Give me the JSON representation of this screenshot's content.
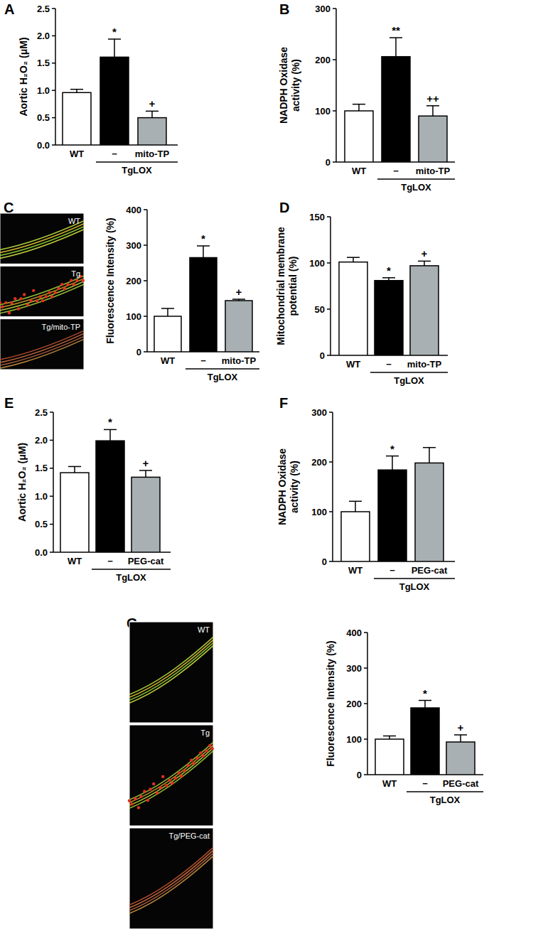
{
  "chart_data": [
    {
      "type": "bar",
      "title": "A",
      "ylabel": [
        "Aortic H₂O₂ (μM)"
      ],
      "categories": [
        "WT",
        "−",
        "mito-TP"
      ],
      "group_label": "TgLOX",
      "values": [
        0.96,
        1.61,
        0.5
      ],
      "errors": [
        0.06,
        0.33,
        0.12
      ],
      "colors": [
        "#ffffff",
        "#000000",
        "#a8b0b3"
      ],
      "annotations": [
        null,
        "*",
        "+"
      ],
      "ylim": [
        0,
        2.5
      ],
      "yticks": [
        {
          "value": 0,
          "label": "0.0"
        },
        0.5,
        {
          "value": 1,
          "label": "1.0"
        },
        1.5,
        {
          "value": 2,
          "label": "2.0"
        },
        2.5
      ]
    },
    {
      "type": "bar",
      "title": "B",
      "ylabel": [
        "NADPH Oxidase",
        "activity (%)"
      ],
      "categories": [
        "WT",
        "−",
        "mito-TP"
      ],
      "group_label": "TgLOX",
      "values": [
        100,
        206,
        90
      ],
      "errors": [
        13,
        37,
        20
      ],
      "colors": [
        "#ffffff",
        "#000000",
        "#a8b0b3"
      ],
      "annotations": [
        null,
        "**",
        "++"
      ],
      "ylim": [
        0,
        300
      ],
      "yticks": [
        0,
        100,
        200,
        300
      ]
    },
    {
      "type": "bar",
      "title": "C",
      "ylabel": [
        "Fluorescence Intensity (%)"
      ],
      "categories": [
        "WT",
        "−",
        "mito-TP"
      ],
      "group_label": "TgLOX",
      "values": [
        100,
        265,
        144
      ],
      "errors": [
        22,
        33,
        4
      ],
      "colors": [
        "#ffffff",
        "#000000",
        "#a8b0b3"
      ],
      "annotations": [
        null,
        "*",
        "+"
      ],
      "ylim": [
        0,
        400
      ],
      "yticks": [
        0,
        100,
        200,
        300,
        400
      ],
      "image_labels": [
        "WT",
        "Tg",
        "Tg/mito-TP"
      ]
    },
    {
      "type": "bar",
      "title": "D",
      "ylabel": [
        "Mitochondrial membrane",
        "potential (%)"
      ],
      "categories": [
        "WT",
        "−",
        "mito-TP"
      ],
      "group_label": "TgLOX",
      "values": [
        101,
        81,
        97
      ],
      "errors": [
        5,
        3,
        5
      ],
      "colors": [
        "#ffffff",
        "#000000",
        "#a8b0b3"
      ],
      "annotations": [
        null,
        "*",
        "+"
      ],
      "ylim": [
        0,
        150
      ],
      "yticks": [
        0,
        50,
        100,
        150
      ]
    },
    {
      "type": "bar",
      "title": "E",
      "ylabel": [
        "Aortic H₂O₂ (μM)"
      ],
      "categories": [
        "WT",
        "−",
        "PEG-cat"
      ],
      "group_label": "TgLOX",
      "values": [
        1.42,
        1.99,
        1.34
      ],
      "errors": [
        0.11,
        0.2,
        0.12
      ],
      "colors": [
        "#ffffff",
        "#000000",
        "#a8b0b3"
      ],
      "annotations": [
        null,
        "*",
        "+"
      ],
      "ylim": [
        0,
        2.5
      ],
      "yticks": [
        {
          "value": 0,
          "label": "0.0"
        },
        0.5,
        {
          "value": 1,
          "label": "1.0"
        },
        1.5,
        {
          "value": 2,
          "label": "2.0"
        },
        2.5
      ]
    },
    {
      "type": "bar",
      "title": "F",
      "ylabel": [
        "NADPH Oxidase",
        "activity (%)"
      ],
      "categories": [
        "WT",
        "−",
        "PEG-cat"
      ],
      "group_label": "TgLOX",
      "values": [
        100,
        184,
        198
      ],
      "errors": [
        21,
        28,
        31
      ],
      "colors": [
        "#ffffff",
        "#000000",
        "#a8b0b3"
      ],
      "annotations": [
        null,
        "*",
        null
      ],
      "ylim": [
        0,
        300
      ],
      "yticks": [
        0,
        100,
        200,
        300
      ]
    },
    {
      "type": "bar",
      "title": "G",
      "ylabel": [
        "Fluorescence Intensity  (%)"
      ],
      "categories": [
        "WT",
        "−",
        "PEG-cat"
      ],
      "group_label": "TgLOX",
      "values": [
        100,
        188,
        92
      ],
      "errors": [
        9,
        21,
        20
      ],
      "colors": [
        "#ffffff",
        "#000000",
        "#a8b0b3"
      ],
      "annotations": [
        null,
        "*",
        "+"
      ],
      "ylim": [
        0,
        400
      ],
      "yticks": [
        0,
        100,
        200,
        300,
        400
      ],
      "image_labels": [
        "WT",
        "Tg",
        "Tg/PEG-cat"
      ]
    }
  ]
}
